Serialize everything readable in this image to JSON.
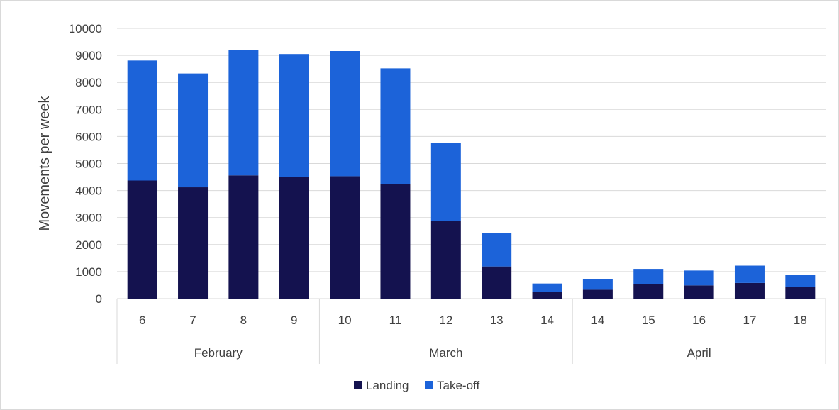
{
  "chart_data": {
    "type": "bar",
    "stacked": true,
    "title": "",
    "xlabel": "",
    "ylabel": "Movements per week",
    "ylim": [
      0,
      10000
    ],
    "yticks": [
      0,
      1000,
      2000,
      3000,
      4000,
      5000,
      6000,
      7000,
      8000,
      9000,
      10000
    ],
    "categories": [
      "6",
      "7",
      "8",
      "9",
      "10",
      "11",
      "12",
      "13",
      "14",
      "14",
      "15",
      "16",
      "17",
      "18"
    ],
    "groups": [
      {
        "label": "February",
        "categories": [
          "6",
          "7",
          "8",
          "9"
        ]
      },
      {
        "label": "March",
        "categories": [
          "10",
          "11",
          "12",
          "13",
          "14"
        ]
      },
      {
        "label": "April",
        "categories": [
          "14",
          "15",
          "16",
          "17",
          "18"
        ]
      }
    ],
    "series": [
      {
        "name": "Landing",
        "color": "#14124f",
        "values": [
          4370,
          4120,
          4560,
          4500,
          4530,
          4240,
          2870,
          1190,
          260,
          330,
          530,
          490,
          580,
          420
        ]
      },
      {
        "name": "Take-off",
        "color": "#1c63d9",
        "values": [
          4440,
          4210,
          4640,
          4550,
          4630,
          4280,
          2880,
          1230,
          300,
          400,
          570,
          550,
          640,
          450
        ]
      }
    ],
    "grid": true,
    "legend_position": "bottom"
  }
}
